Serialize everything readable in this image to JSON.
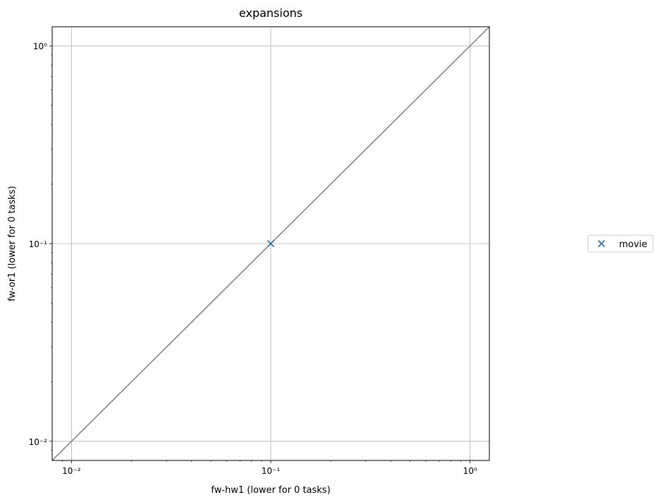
{
  "chart_data": {
    "type": "scatter",
    "title": "expansions",
    "xlabel": "fw-hw1 (lower for 0 tasks)",
    "ylabel": "fw-or1 (lower for 0 tasks)",
    "xscale": "log",
    "yscale": "log",
    "xlim": [
      0.008,
      1.25
    ],
    "ylim": [
      0.008,
      1.25
    ],
    "grid": true,
    "legend_position": "outside-right",
    "x_ticks": [
      {
        "value": 0.01,
        "label": "10⁻²"
      },
      {
        "value": 0.1,
        "label": "10⁻¹"
      },
      {
        "value": 1,
        "label": "10⁰"
      }
    ],
    "y_ticks": [
      {
        "value": 0.01,
        "label": "10⁻²"
      },
      {
        "value": 0.1,
        "label": "10⁻¹"
      },
      {
        "value": 1,
        "label": "10⁰"
      }
    ],
    "series": [
      {
        "name": "movie",
        "marker": "x",
        "color": "#1f77b4",
        "points": [
          {
            "x": 0.1,
            "y": 0.1
          }
        ]
      }
    ],
    "reference_line": {
      "kind": "y = x",
      "color": "#808080"
    }
  }
}
